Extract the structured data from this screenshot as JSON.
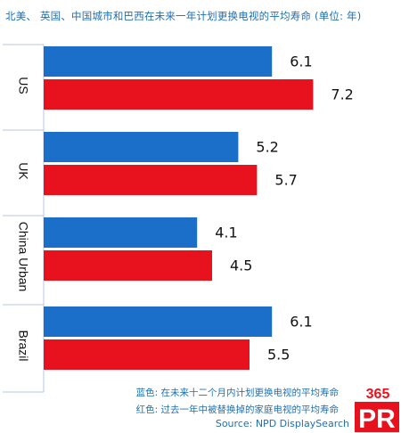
{
  "chart_data": {
    "type": "bar",
    "orientation": "horizontal",
    "title": "北美、 英国、中国城市和巴西在未来一年计划更换电视的平均寿命 (单位: 年)",
    "categories": [
      "US",
      "UK",
      "China Urban",
      "Brazil"
    ],
    "series": [
      {
        "name": "蓝色: 在未来十二个月内计划更换电视的平均寿命",
        "color": "#1b6fc9",
        "values": [
          6.1,
          5.2,
          4.1,
          6.1
        ]
      },
      {
        "name": "红色: 过去一年中被替换掉的家庭电视的平均寿命",
        "color": "#e8121e",
        "values": [
          7.2,
          5.7,
          4.5,
          5.5
        ]
      }
    ],
    "grid": false,
    "legend": "bottom-right text notes"
  },
  "notes": {
    "blue": "蓝色: 在未来十二个月内计划更换电视的平均寿命",
    "red": "红色: 过去一年中被替换掉的家庭电视的平均寿命"
  },
  "source": "Source: NPD DisplaySearch",
  "logo": {
    "top": "365",
    "bottom": "PR",
    "top_color": "#e8121e",
    "bottom_color": "#e8121e"
  }
}
